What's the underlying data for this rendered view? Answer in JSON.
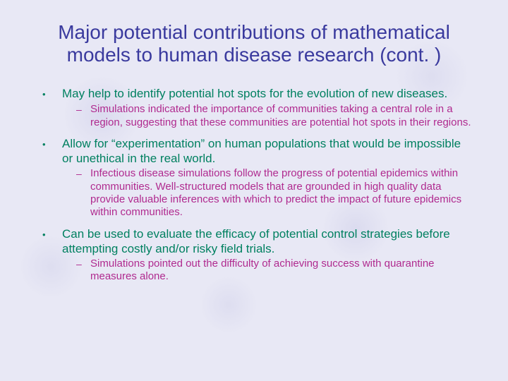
{
  "colors": {
    "background": "#e8e8f5",
    "title": "#3a3a9e",
    "main_text": "#008060",
    "sub_text": "#b02a8f"
  },
  "typography": {
    "font_family": "Comic Sans MS",
    "title_fontsize": 28,
    "main_fontsize": 17,
    "sub_fontsize": 15
  },
  "title": "Major potential contributions of mathematical models to human disease research (cont. )",
  "bullets": [
    {
      "text": "May help to identify potential hot spots for the evolution of new diseases.",
      "sub": [
        "Simulations indicated the importance of communities taking a central role in a region, suggesting that these communities are potential hot spots in their regions."
      ]
    },
    {
      "text": "Allow for “experimentation” on human populations that would be impossible or unethical in the real world.",
      "sub": [
        "Infectious disease simulations follow the progress of potential epidemics within communities.  Well-structured models that are grounded in high quality data provide valuable inferences with  which to predict the impact of future epidemics within communities."
      ]
    },
    {
      "text": "Can be used to evaluate the efficacy of potential control strategies before attempting costly and/or risky field trials.",
      "sub": [
        "Simulations pointed out the difficulty of achieving success with quarantine measures alone."
      ]
    }
  ]
}
